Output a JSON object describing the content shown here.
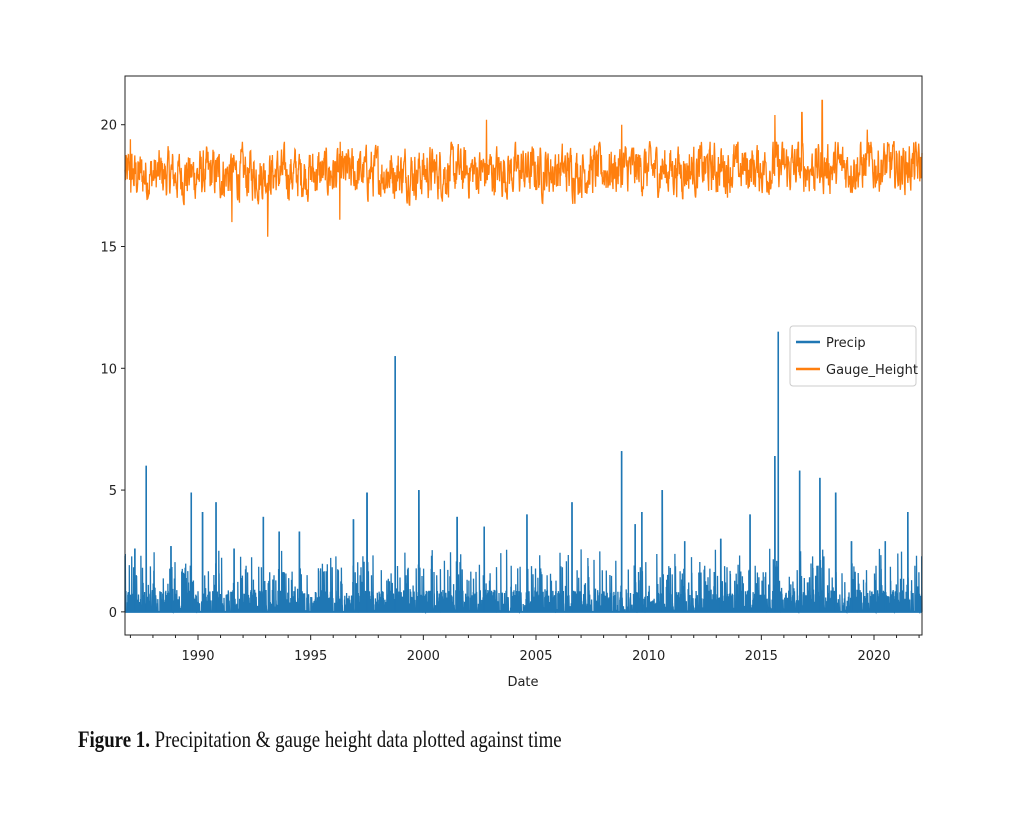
{
  "chart_data": {
    "type": "line",
    "title": "",
    "xlabel": "Date",
    "ylabel": "",
    "xlim": [
      1986.76,
      2022.13
    ],
    "ylim": [
      -0.95,
      22.0
    ],
    "x_ticks": [
      "1990",
      "1995",
      "2000",
      "2005",
      "2010",
      "2015",
      "2020"
    ],
    "x_tick_values": [
      1990,
      1995,
      2000,
      2005,
      2010,
      2015,
      2020
    ],
    "y_ticks": [
      "0",
      "5",
      "10",
      "15",
      "20"
    ],
    "y_tick_values": [
      0,
      5,
      10,
      15,
      20
    ],
    "grid": false,
    "legend": {
      "placement": "center-right",
      "entries": [
        "Precip",
        "Gauge_Height"
      ]
    },
    "series": [
      {
        "name": "Precip",
        "color": "#1f77b4",
        "typical_range": [
          0,
          1.5
        ],
        "peaks": [
          [
            1987.2,
            2.6
          ],
          [
            1987.7,
            6.0
          ],
          [
            1988.8,
            2.7
          ],
          [
            1989.7,
            4.9
          ],
          [
            1990.2,
            4.1
          ],
          [
            1990.8,
            4.5
          ],
          [
            1991.6,
            2.6
          ],
          [
            1992.9,
            3.9
          ],
          [
            1993.6,
            3.3
          ],
          [
            1994.5,
            3.3
          ],
          [
            1996.9,
            3.8
          ],
          [
            1997.5,
            4.9
          ],
          [
            1998.75,
            10.5
          ],
          [
            1999.8,
            5.0
          ],
          [
            2001.5,
            3.9
          ],
          [
            2002.7,
            3.5
          ],
          [
            2004.6,
            4.0
          ],
          [
            2006.6,
            4.5
          ],
          [
            2008.8,
            6.6
          ],
          [
            2009.4,
            3.6
          ],
          [
            2009.7,
            4.1
          ],
          [
            2010.6,
            5.0
          ],
          [
            2011.6,
            2.9
          ],
          [
            2013.2,
            3.0
          ],
          [
            2014.5,
            4.0
          ],
          [
            2015.6,
            6.4
          ],
          [
            2015.75,
            11.5
          ],
          [
            2016.7,
            5.8
          ],
          [
            2017.6,
            5.5
          ],
          [
            2018.3,
            4.9
          ],
          [
            2019.0,
            2.9
          ],
          [
            2020.5,
            2.9
          ],
          [
            2021.5,
            4.1
          ]
        ]
      },
      {
        "name": "Gauge_Height",
        "color": "#ff7f0e",
        "typical_range": [
          16.7,
          19.3
        ],
        "mean_start": 17.9,
        "mean_end": 18.3,
        "extremes": [
          [
            1987.0,
            19.4
          ],
          [
            1991.5,
            16.0
          ],
          [
            1993.1,
            15.4
          ],
          [
            1996.3,
            16.1
          ],
          [
            2002.8,
            20.2
          ],
          [
            2008.8,
            20.0
          ],
          [
            2015.6,
            20.4
          ],
          [
            2016.8,
            20.5
          ],
          [
            2017.7,
            21.0
          ],
          [
            2019.7,
            19.8
          ]
        ]
      }
    ]
  },
  "caption": {
    "label": "Figure 1.",
    "text": " Precipitation & gauge height data plotted against time"
  }
}
